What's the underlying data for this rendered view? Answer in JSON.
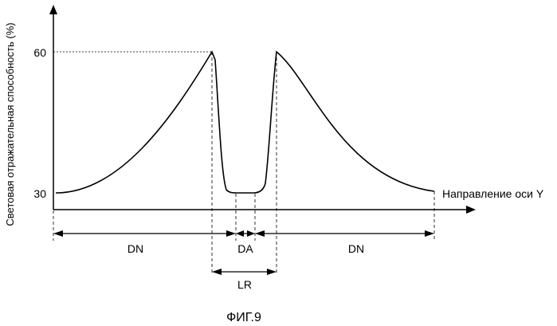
{
  "figure": {
    "caption": "ФИГ.9"
  },
  "axes": {
    "y_label": "Световая отражательная способность (%)",
    "x_label": "Направление оси Y",
    "y_ticks": [
      "60",
      "30"
    ]
  },
  "regions": {
    "dn_left": "DN",
    "da": "DA",
    "dn_right": "DN",
    "lr": "LR"
  }
}
